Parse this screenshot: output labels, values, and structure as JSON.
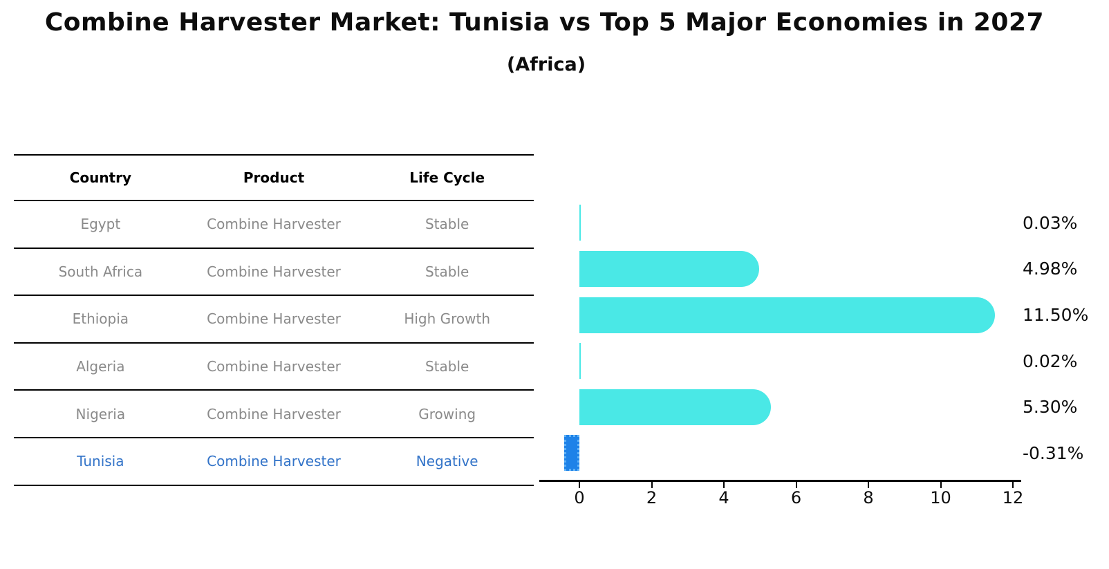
{
  "header": {
    "title": "Combine Harvester Market: Tunisia vs Top 5 Major Economies in 2027",
    "subtitle": "(Africa)"
  },
  "table": {
    "columns": [
      "Country",
      "Product",
      "Life Cycle"
    ],
    "rows": [
      {
        "country": "Egypt",
        "product": "Combine Harvester",
        "life_cycle": "Stable",
        "highlight": false
      },
      {
        "country": "South Africa",
        "product": "Combine Harvester",
        "life_cycle": "Stable",
        "highlight": false
      },
      {
        "country": "Ethiopia",
        "product": "Combine Harvester",
        "life_cycle": "High Growth",
        "highlight": false
      },
      {
        "country": "Algeria",
        "product": "Combine Harvester",
        "life_cycle": "Stable",
        "highlight": false
      },
      {
        "country": "Nigeria",
        "product": "Combine Harvester",
        "life_cycle": "Growing",
        "highlight": false
      },
      {
        "country": "Tunisia",
        "product": "Combine Harvester",
        "life_cycle": "Negative",
        "highlight": true
      }
    ]
  },
  "chart_data": {
    "type": "bar",
    "orientation": "horizontal",
    "title": "Combine Harvester Market: Tunisia vs Top 5 Major Economies in 2027",
    "subtitle": "(Africa)",
    "categories": [
      "Egypt",
      "South Africa",
      "Ethiopia",
      "Algeria",
      "Nigeria",
      "Tunisia"
    ],
    "values": [
      0.03,
      4.98,
      11.5,
      0.02,
      5.3,
      -0.31
    ],
    "value_labels": [
      "0.03%",
      "4.98%",
      "11.50%",
      "0.02%",
      "5.30%",
      "-0.31%"
    ],
    "x_ticks": [
      0,
      2,
      4,
      6,
      8,
      10,
      12
    ],
    "xlim": [
      -1.1,
      12.2
    ],
    "grid": false,
    "legend": "none",
    "bar_color": "#4AE8E6",
    "negative_bar_color": "#1E82E8",
    "highlight_text_color": "#3273C8",
    "xlabel": "",
    "ylabel": ""
  }
}
